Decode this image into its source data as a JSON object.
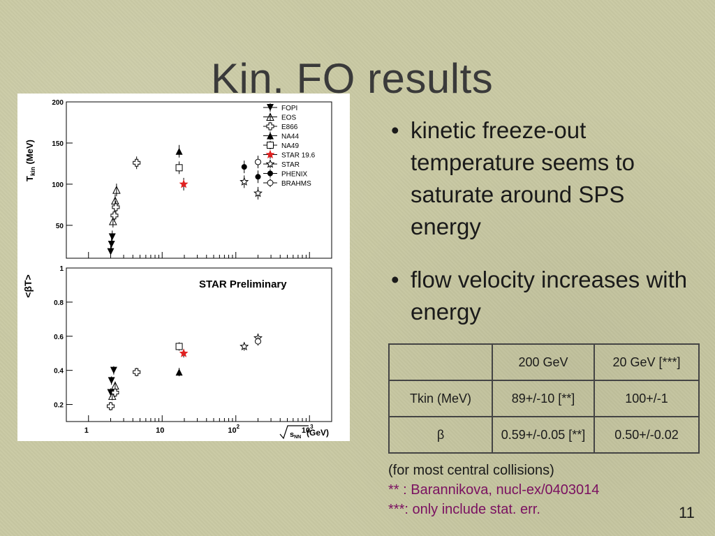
{
  "title": "Kin. FO results",
  "bullets": [
    "kinetic freeze-out temperature seems to saturate around SPS energy",
    "flow velocity increases with energy"
  ],
  "table": {
    "header": [
      "",
      "200 GeV",
      "20 GeV [***]"
    ],
    "rows": [
      [
        "Tkin (MeV)",
        "89+/-10 [**]",
        "100+/-1"
      ],
      [
        "β",
        "0.59+/-0.05 [**]",
        "0.50+/-0.02"
      ]
    ]
  },
  "notes": [
    "(for most central collisions)",
    "** : Barannikova, nucl-ex/0403014",
    "***: only include stat. err."
  ],
  "page_number": "11",
  "chart_data": [
    {
      "type": "scatter",
      "ylabel": "T kin (MeV)",
      "ylabel_main": "T",
      "ylabel_sub": "kin",
      "ylabel_unit": "(MeV)",
      "x_scale": "log",
      "xlim": [
        0.5,
        2000
      ],
      "ylim": [
        10,
        200
      ],
      "y_ticks": [
        "50",
        "100",
        "150",
        "200"
      ],
      "legend": [
        {
          "name": "FOPI",
          "marker": "triangle-down-filled"
        },
        {
          "name": "EOS",
          "marker": "triangle-up-open"
        },
        {
          "name": "E866",
          "marker": "cross-open"
        },
        {
          "name": "NA44",
          "marker": "triangle-up-filled"
        },
        {
          "name": "NA49",
          "marker": "square-open"
        },
        {
          "name": "STAR 19.6",
          "marker": "star-filled-red"
        },
        {
          "name": "STAR",
          "marker": "star-open"
        },
        {
          "name": "PHENIX",
          "marker": "circle-filled"
        },
        {
          "name": "BRAHMS",
          "marker": "circle-open"
        }
      ],
      "points": [
        {
          "s": "FOPI",
          "x": 2.0,
          "y": 18
        },
        {
          "s": "FOPI",
          "x": 2.05,
          "y": 27
        },
        {
          "s": "FOPI",
          "x": 2.1,
          "y": 36
        },
        {
          "s": "EOS",
          "x": 2.15,
          "y": 55
        },
        {
          "s": "EOS",
          "x": 2.3,
          "y": 80
        },
        {
          "s": "EOS",
          "x": 2.4,
          "y": 93
        },
        {
          "s": "E866",
          "x": 2.25,
          "y": 62
        },
        {
          "s": "E866",
          "x": 2.35,
          "y": 72
        },
        {
          "s": "E866",
          "x": 4.5,
          "y": 126
        },
        {
          "s": "NA44",
          "x": 17,
          "y": 140
        },
        {
          "s": "NA49",
          "x": 17,
          "y": 120
        },
        {
          "s": "STAR 19.6",
          "x": 19.6,
          "y": 100
        },
        {
          "s": "STAR",
          "x": 130,
          "y": 103
        },
        {
          "s": "STAR",
          "x": 200,
          "y": 89
        },
        {
          "s": "PHENIX",
          "x": 130,
          "y": 121
        },
        {
          "s": "PHENIX",
          "x": 200,
          "y": 109
        },
        {
          "s": "BRAHMS",
          "x": 200,
          "y": 127
        }
      ]
    },
    {
      "type": "scatter",
      "title": "STAR Preliminary",
      "ylabel": "<βT>",
      "xlabel": "√sNN (GeV)",
      "xlabel_sub": "NN",
      "xlabel_unit": "(GeV)",
      "x_scale": "log",
      "xlim": [
        0.5,
        2000
      ],
      "ylim": [
        0.1,
        1.0
      ],
      "y_ticks": [
        "0.2",
        "0.4",
        "0.6",
        "0.8",
        "1"
      ],
      "x_ticks": [
        "1",
        "10",
        "10^2",
        "10^3"
      ],
      "points": [
        {
          "s": "FOPI",
          "x": 2.0,
          "y": 0.27
        },
        {
          "s": "FOPI",
          "x": 2.05,
          "y": 0.34
        },
        {
          "s": "FOPI",
          "x": 2.2,
          "y": 0.4
        },
        {
          "s": "EOS",
          "x": 2.1,
          "y": 0.25
        },
        {
          "s": "EOS",
          "x": 2.3,
          "y": 0.31
        },
        {
          "s": "E866",
          "x": 2.0,
          "y": 0.19
        },
        {
          "s": "E866",
          "x": 2.3,
          "y": 0.27
        },
        {
          "s": "E866",
          "x": 4.5,
          "y": 0.39
        },
        {
          "s": "NA44",
          "x": 17,
          "y": 0.39
        },
        {
          "s": "NA49",
          "x": 17,
          "y": 0.54
        },
        {
          "s": "STAR 19.6",
          "x": 19.6,
          "y": 0.5
        },
        {
          "s": "STAR",
          "x": 130,
          "y": 0.54
        },
        {
          "s": "STAR",
          "x": 200,
          "y": 0.59
        },
        {
          "s": "BRAHMS",
          "x": 200,
          "y": 0.57
        }
      ]
    }
  ],
  "colors": {
    "background": "#c9c9a3",
    "title": "#3a3a3a",
    "note_accent": "#7a1060",
    "star_red": "#e02020"
  },
  "icons": {
    "bullet": "bullet-dot"
  }
}
